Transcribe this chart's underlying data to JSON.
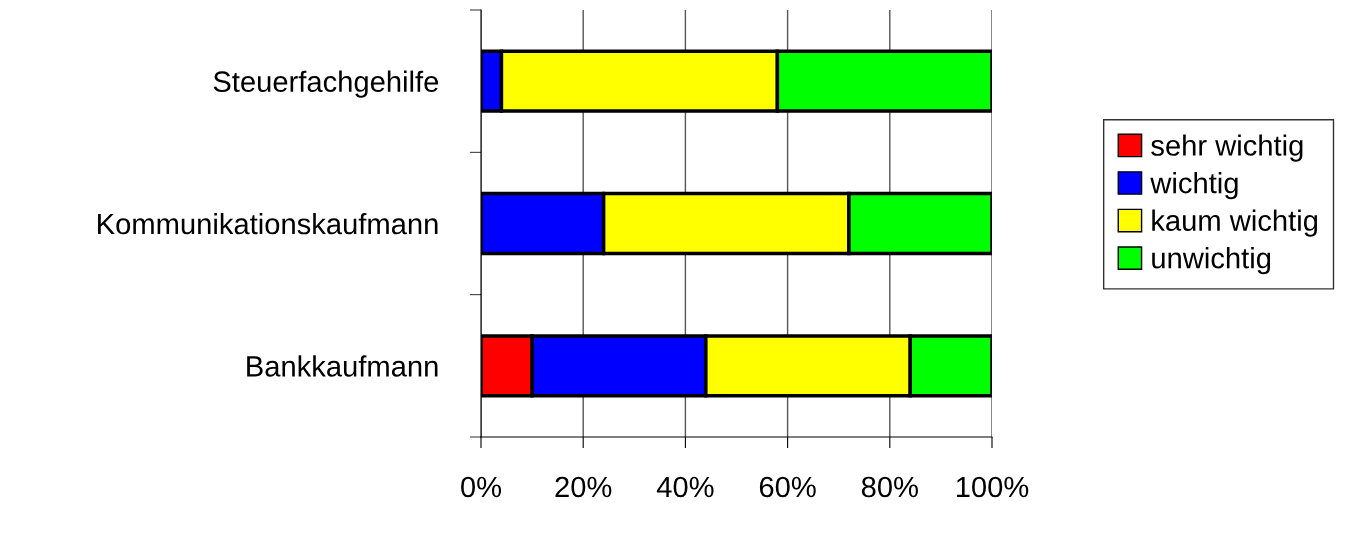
{
  "chart_data": {
    "type": "bar",
    "orientation": "horizontal",
    "stacked": true,
    "categories": [
      "Steuerfachgehilfe",
      "Kommunikationskaufmann",
      "Bankkaufmann"
    ],
    "series": [
      {
        "name": "sehr wichtig",
        "color": "#ff0000",
        "values": [
          0,
          0,
          10
        ]
      },
      {
        "name": "wichtig",
        "color": "#0000ff",
        "values": [
          4,
          24,
          34
        ]
      },
      {
        "name": "kaum wichtig",
        "color": "#ffff00",
        "values": [
          54,
          48,
          40
        ]
      },
      {
        "name": "unwichtig",
        "color": "#00ff00",
        "values": [
          42,
          28,
          16
        ]
      }
    ],
    "xlim": [
      0,
      100
    ],
    "xticks": [
      {
        "value": 0,
        "label": "0%"
      },
      {
        "value": 20,
        "label": "20%"
      },
      {
        "value": 40,
        "label": "40%"
      },
      {
        "value": 60,
        "label": "60%"
      },
      {
        "value": 80,
        "label": "80%"
      },
      {
        "value": 100,
        "label": "100%"
      }
    ],
    "grid": "x",
    "legend": "right"
  }
}
